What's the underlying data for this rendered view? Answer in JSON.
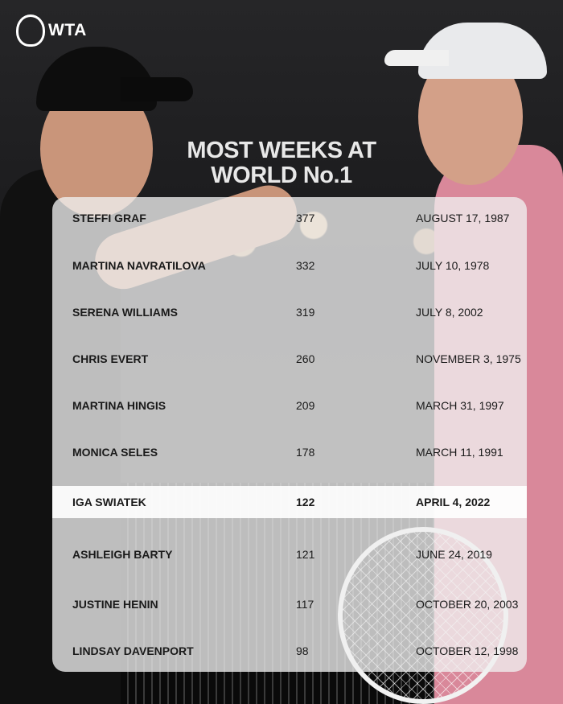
{
  "brand": {
    "logo_text": "WTA"
  },
  "title": {
    "line1": "MOST WEEKS AT",
    "line2": "WORLD No.1"
  },
  "colors": {
    "panel": "#f0f0f0",
    "highlight": "#ffffff",
    "text": "#1a1a1a",
    "title": "#e8e8e8"
  },
  "highlighted_player": "IGA SWIATEK",
  "rows": [
    {
      "name": "STEFFI GRAF",
      "weeks": "377",
      "first_date": "AUGUST 17, 1987"
    },
    {
      "name": "MARTINA NAVRATILOVA",
      "weeks": "332",
      "first_date": "JULY 10, 1978"
    },
    {
      "name": "SERENA WILLIAMS",
      "weeks": "319",
      "first_date": "JULY 8, 2002"
    },
    {
      "name": "CHRIS EVERT",
      "weeks": "260",
      "first_date": "NOVEMBER 3, 1975"
    },
    {
      "name": "MARTINA HINGIS",
      "weeks": "209",
      "first_date": "MARCH 31, 1997"
    },
    {
      "name": "MONICA SELES",
      "weeks": "178",
      "first_date": "MARCH 11, 1991"
    },
    {
      "name": "IGA SWIATEK",
      "weeks": "122",
      "first_date": "APRIL 4, 2022"
    },
    {
      "name": "ASHLEIGH BARTY",
      "weeks": "121",
      "first_date": "JUNE 24, 2019"
    },
    {
      "name": "JUSTINE HENIN",
      "weeks": "117",
      "first_date": "OCTOBER 20, 2003"
    },
    {
      "name": "LINDSAY DAVENPORT",
      "weeks": "98",
      "first_date": "OCTOBER 12, 1998"
    }
  ]
}
